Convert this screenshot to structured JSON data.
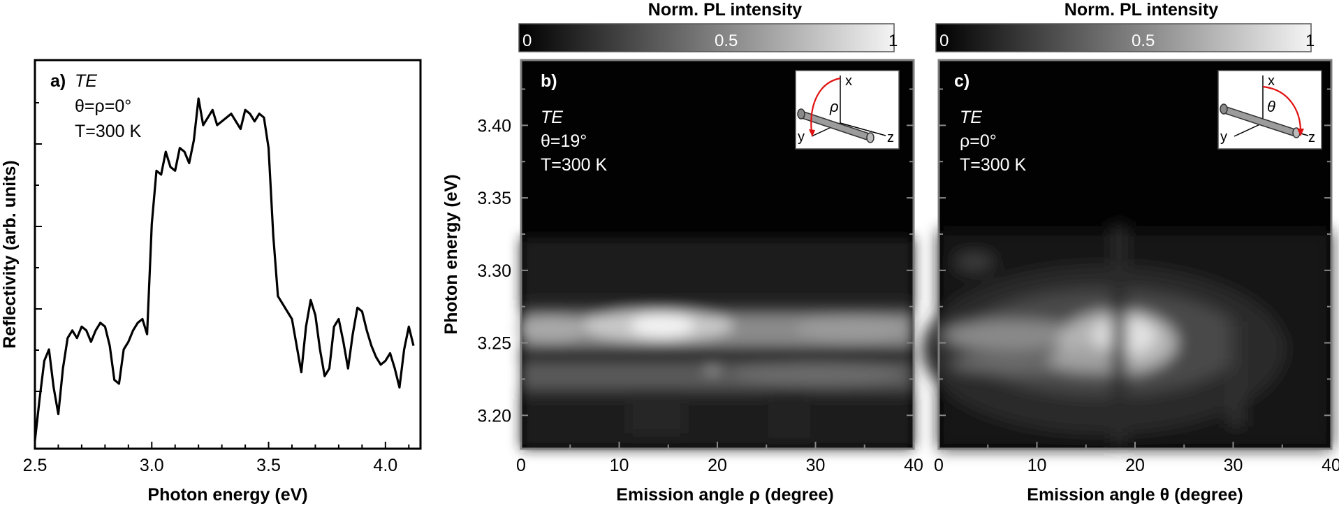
{
  "chart_data": [
    {
      "panel": "a)",
      "type": "line",
      "title": "",
      "xlabel": "Photon energy (eV)",
      "ylabel": "Reflectivity (arb. units)",
      "xlim": [
        2.5,
        4.15
      ],
      "ylim": [
        0,
        1
      ],
      "xticks": [
        2.5,
        3.0,
        3.5,
        4.0
      ],
      "xtick_labels": [
        "2.5",
        "3.0",
        "3.5",
        "4.0"
      ],
      "annotations": [
        "TE",
        "θ=ρ=0°",
        "T=300 K"
      ],
      "series": [
        {
          "name": "Reflectivity",
          "x": [
            2.5,
            2.52,
            2.54,
            2.56,
            2.58,
            2.6,
            2.62,
            2.64,
            2.66,
            2.68,
            2.7,
            2.72,
            2.74,
            2.76,
            2.78,
            2.8,
            2.82,
            2.84,
            2.86,
            2.88,
            2.9,
            2.92,
            2.94,
            2.96,
            2.98,
            3.0,
            3.02,
            3.04,
            3.06,
            3.08,
            3.1,
            3.12,
            3.14,
            3.16,
            3.18,
            3.2,
            3.22,
            3.24,
            3.26,
            3.28,
            3.3,
            3.32,
            3.34,
            3.36,
            3.38,
            3.4,
            3.42,
            3.44,
            3.46,
            3.48,
            3.5,
            3.52,
            3.54,
            3.56,
            3.58,
            3.6,
            3.62,
            3.64,
            3.66,
            3.68,
            3.7,
            3.72,
            3.74,
            3.76,
            3.78,
            3.8,
            3.82,
            3.84,
            3.86,
            3.88,
            3.9,
            3.92,
            3.94,
            3.96,
            3.98,
            4.0,
            4.02,
            4.04,
            4.06,
            4.08,
            4.1,
            4.12
          ],
          "y": [
            0.01,
            0.12,
            0.22,
            0.25,
            0.15,
            0.08,
            0.2,
            0.28,
            0.3,
            0.28,
            0.31,
            0.3,
            0.27,
            0.3,
            0.32,
            0.31,
            0.26,
            0.17,
            0.16,
            0.25,
            0.27,
            0.3,
            0.32,
            0.33,
            0.29,
            0.58,
            0.72,
            0.71,
            0.77,
            0.73,
            0.72,
            0.78,
            0.77,
            0.74,
            0.8,
            0.91,
            0.84,
            0.86,
            0.88,
            0.84,
            0.85,
            0.86,
            0.87,
            0.85,
            0.83,
            0.88,
            0.87,
            0.85,
            0.87,
            0.86,
            0.78,
            0.55,
            0.39,
            0.37,
            0.35,
            0.33,
            0.26,
            0.19,
            0.31,
            0.38,
            0.34,
            0.25,
            0.18,
            0.2,
            0.31,
            0.33,
            0.27,
            0.2,
            0.29,
            0.36,
            0.35,
            0.3,
            0.26,
            0.23,
            0.21,
            0.22,
            0.24,
            0.2,
            0.15,
            0.25,
            0.31,
            0.26
          ]
        }
      ]
    },
    {
      "panel": "b)",
      "type": "heatmap",
      "xlabel": "Emission angle ρ (degree)",
      "ylabel": "Photon energy (eV)",
      "xlim": [
        0,
        40
      ],
      "ylim": [
        3.177,
        3.445
      ],
      "xticks": [
        0,
        10,
        20,
        30,
        40
      ],
      "yticks": [
        3.2,
        3.25,
        3.3,
        3.35,
        3.4
      ],
      "ytick_labels": [
        "3.20",
        "3.25",
        "3.30",
        "3.35",
        "3.40"
      ],
      "annotations": [
        "TE",
        "θ=19°",
        "T=300 K"
      ],
      "colorbar": {
        "label": "Norm. PL intensity",
        "range": [
          0,
          1
        ],
        "ticks": [
          "0",
          "0.5",
          "1"
        ]
      },
      "peak_bands_eV": [
        3.258,
        3.228
      ],
      "brightest_angle": 15,
      "inset_axes": [
        "x",
        "y",
        "z",
        "ρ"
      ]
    },
    {
      "panel": "c)",
      "type": "heatmap",
      "xlabel": "Emission angle θ (degree)",
      "ylabel": "Photon energy (eV)",
      "xlim": [
        0,
        40
      ],
      "ylim": [
        3.177,
        3.445
      ],
      "xticks": [
        0,
        10,
        20,
        30,
        40
      ],
      "yticks": [
        3.2,
        3.25,
        3.3,
        3.35,
        3.4
      ],
      "annotations": [
        "TE",
        "ρ=0°",
        "T=300 K"
      ],
      "colorbar": {
        "label": "Norm. PL intensity",
        "range": [
          0,
          1
        ],
        "ticks": [
          "0",
          "0.5",
          "1"
        ]
      },
      "peak_bands_eV": [
        3.25,
        3.228
      ],
      "brightest_angle": 18,
      "inset_axes": [
        "x",
        "y",
        "z",
        "θ"
      ]
    }
  ]
}
